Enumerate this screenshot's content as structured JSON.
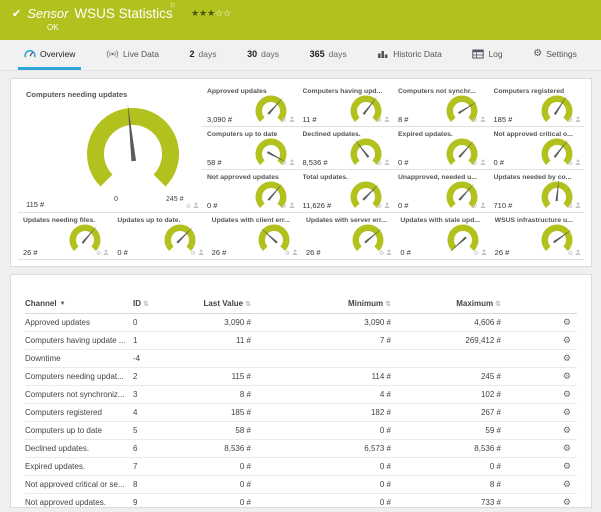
{
  "colors": {
    "brand_green": "#b2c11d",
    "accent_blue": "#2fa3dc",
    "needle": "#5a5a5a"
  },
  "header": {
    "kind": "Sensor",
    "title": "WSUS Statistics",
    "status": "OK",
    "stars_filled": "★★★",
    "stars_empty": "☆☆",
    "note_icon": "⚐",
    "check_icon": "✔"
  },
  "tabs": [
    {
      "id": "overview",
      "icon": "overview-icon",
      "label": "Overview",
      "active": true
    },
    {
      "id": "live-data",
      "icon": "live-data-icon",
      "label": "Live Data"
    },
    {
      "id": "2-days",
      "num": "2",
      "label": "days"
    },
    {
      "id": "30-days",
      "num": "30",
      "label": "days"
    },
    {
      "id": "365-days",
      "num": "365",
      "label": "days"
    },
    {
      "id": "historic-data",
      "icon": "historic-data-icon",
      "label": "Historic Data"
    },
    {
      "id": "log",
      "icon": "log-icon",
      "label": "Log"
    },
    {
      "id": "settings",
      "icon": "settings-icon",
      "label": "Settings"
    }
  ],
  "gauges": {
    "main": {
      "label": "Computers needing updates",
      "value": "115 #",
      "min_label": "0",
      "max_label": "245 #",
      "needle_deg": -6
    },
    "side": [
      {
        "label": "Approved updates",
        "value": "3,090 #",
        "needle_deg": 42
      },
      {
        "label": "Computers having upd...",
        "value": "11 #",
        "needle_deg": 38
      },
      {
        "label": "Computers not synchr...",
        "value": "8 #",
        "needle_deg": 58
      },
      {
        "label": "Computers registered",
        "value": "185 #",
        "needle_deg": 33
      },
      {
        "label": "Computers up to date",
        "value": "58 #",
        "needle_deg": 118
      },
      {
        "label": "Declined updates.",
        "value": "8,536 #",
        "needle_deg": -38
      },
      {
        "label": "Expired updates.",
        "value": "0 #",
        "needle_deg": 42
      },
      {
        "label": "Not approved critical o...",
        "value": "0 #",
        "needle_deg": 38
      },
      {
        "label": "Not approved updates",
        "value": "0 #",
        "needle_deg": 40
      },
      {
        "label": "Total updates.",
        "value": "11,626 #",
        "needle_deg": 45
      },
      {
        "label": "Unapproved, needed u...",
        "value": "0 #",
        "needle_deg": 42
      },
      {
        "label": "Updates needed by co...",
        "value": "710 #",
        "needle_deg": 6
      }
    ],
    "bottom": [
      {
        "label": "Updates needing files.",
        "value": "26 #",
        "needle_deg": 40
      },
      {
        "label": "Updates up to date.",
        "value": "0 #",
        "needle_deg": 45
      },
      {
        "label": "Updates with client err...",
        "value": "26 #",
        "needle_deg": -48
      },
      {
        "label": "Updates with server err...",
        "value": "26 #",
        "needle_deg": 50
      },
      {
        "label": "Updates with stale upd...",
        "value": "0 #",
        "needle_deg": -132
      },
      {
        "label": "WSUS infrastructure u...",
        "value": "26 #",
        "needle_deg": 55
      }
    ]
  },
  "table": {
    "columns": [
      {
        "label": "Channel",
        "sort": "desc"
      },
      {
        "label": "ID",
        "sort": "both"
      },
      {
        "label": "Last Value",
        "sort": "both"
      },
      {
        "label": "Minimum",
        "sort": "both"
      },
      {
        "label": "Maximum",
        "sort": "both"
      }
    ],
    "rows": [
      {
        "channel": "Approved updates",
        "id": "0",
        "last": "3,090 #",
        "min": "3,090 #",
        "max": "4,606 #"
      },
      {
        "channel": "Computers having update ...",
        "id": "1",
        "last": "11 #",
        "min": "7 #",
        "max": "269,412 #"
      },
      {
        "channel": "Downtime",
        "id": "-4",
        "last": "",
        "min": "",
        "max": ""
      },
      {
        "channel": "Computers needing updat...",
        "id": "2",
        "last": "115 #",
        "min": "114 #",
        "max": "245 #"
      },
      {
        "channel": "Computers not synchroniz...",
        "id": "3",
        "last": "8 #",
        "min": "4 #",
        "max": "102 #"
      },
      {
        "channel": "Computers registered",
        "id": "4",
        "last": "185 #",
        "min": "182 #",
        "max": "267 #"
      },
      {
        "channel": "Computers up to date",
        "id": "5",
        "last": "58 #",
        "min": "0 #",
        "max": "59 #"
      },
      {
        "channel": "Declined updates.",
        "id": "6",
        "last": "8,536 #",
        "min": "6,573 #",
        "max": "8,536 #"
      },
      {
        "channel": "Expired updates.",
        "id": "7",
        "last": "0 #",
        "min": "0 #",
        "max": "0 #"
      },
      {
        "channel": "Not approved critical or se...",
        "id": "8",
        "last": "0 #",
        "min": "0 #",
        "max": "8 #"
      },
      {
        "channel": "Not approved updates.",
        "id": "9",
        "last": "0 #",
        "min": "0 #",
        "max": "733 #"
      }
    ]
  }
}
